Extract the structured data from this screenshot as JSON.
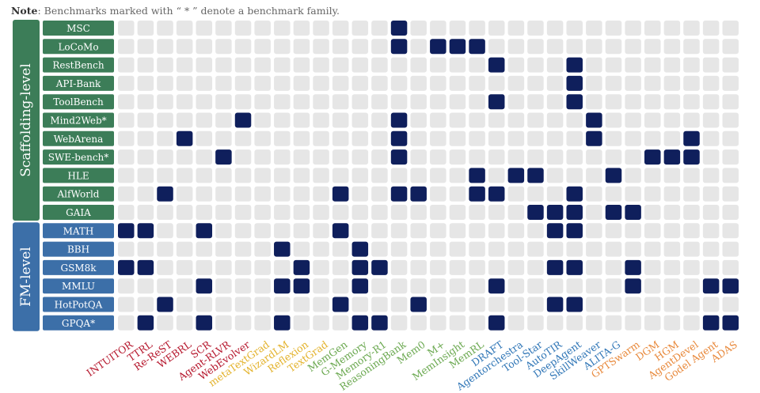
{
  "note": {
    "label": "Note",
    "text": ": Benchmarks marked with “ * ” denote a benchmark family."
  },
  "colors": {
    "cell_empty": "#e6e6e6",
    "cell_filled": "#0f1f5c",
    "group_scaffolding": "#3c7d58",
    "group_fm": "#3c6fa8"
  },
  "chart_data": {
    "type": "heatmap",
    "groups": [
      {
        "name": "Scaffolding-level",
        "rows": [
          "MSC",
          "LoCoMo",
          "RestBench",
          "API-Bank",
          "ToolBench",
          "Mind2Web*",
          "WebArena",
          "SWE-bench*",
          "HLE",
          "AlfWorld",
          "GAIA"
        ]
      },
      {
        "name": "FM-level",
        "rows": [
          "MATH",
          "BBH",
          "GSM8k",
          "MMLU",
          "HotPotQA",
          "GPQA*"
        ]
      }
    ],
    "methods": [
      {
        "name": "INTUITOR",
        "color": "#b5152b"
      },
      {
        "name": "TTRL",
        "color": "#b5152b"
      },
      {
        "name": "Re-ReST",
        "color": "#b5152b"
      },
      {
        "name": "WEBRL",
        "color": "#b5152b"
      },
      {
        "name": "SCR",
        "color": "#b5152b"
      },
      {
        "name": "Agent-RLVR",
        "color": "#b5152b"
      },
      {
        "name": "WebEvolver",
        "color": "#b5152b"
      },
      {
        "name": "metaTextGrad",
        "color": "#e3b22b"
      },
      {
        "name": "WizardLM",
        "color": "#e3b22b"
      },
      {
        "name": "Reflexion",
        "color": "#e3b22b"
      },
      {
        "name": "TextGrad",
        "color": "#e3b22b"
      },
      {
        "name": "MemGen",
        "color": "#6aa84f"
      },
      {
        "name": "G-Memory",
        "color": "#6aa84f"
      },
      {
        "name": "Memory-R1",
        "color": "#6aa84f"
      },
      {
        "name": "ReasoningBank",
        "color": "#6aa84f"
      },
      {
        "name": "Mem0",
        "color": "#6aa84f"
      },
      {
        "name": "M+",
        "color": "#6aa84f"
      },
      {
        "name": "MemInsight",
        "color": "#6aa84f"
      },
      {
        "name": "MemRL",
        "color": "#6aa84f"
      },
      {
        "name": "DRAFT",
        "color": "#2e75b6"
      },
      {
        "name": "Agentorchestra",
        "color": "#2e75b6"
      },
      {
        "name": "Tool-Star",
        "color": "#2e75b6"
      },
      {
        "name": "AutoTIR",
        "color": "#2e75b6"
      },
      {
        "name": "DeepAgent",
        "color": "#2e75b6"
      },
      {
        "name": "SkillWeaver",
        "color": "#2e75b6"
      },
      {
        "name": "ALITA-G",
        "color": "#2e75b6"
      },
      {
        "name": "GPTSwarm",
        "color": "#e8883a"
      },
      {
        "name": "DGM",
        "color": "#e8883a"
      },
      {
        "name": "HGM",
        "color": "#e8883a"
      },
      {
        "name": "AgentDevel",
        "color": "#e8883a"
      },
      {
        "name": "Godel Agent",
        "color": "#e8883a"
      },
      {
        "name": "ADAS",
        "color": "#e8883a"
      }
    ],
    "matrix": [
      "00000000000000100000000000000000",
      "00000000000000101110000000000000",
      "00000000000000000001000100000000",
      "00000000000000000000000100000000",
      "00000000000000000001000100000000",
      "00000010000000100000000010000000",
      "00010000000000100000000010000100",
      "00000100000000100000000000011100",
      "00000000000000000010110001000000",
      "00100000000100110011000100000000",
      "00000000000000000000011101100000",
      "11001000000100000000001100000000",
      "00000000100010000000000000000000",
      "11000000010011000000001100100000",
      "00001000110010000001000000100011",
      "00100000000100010000001100000000",
      "01001000100011000001000000000011"
    ]
  }
}
